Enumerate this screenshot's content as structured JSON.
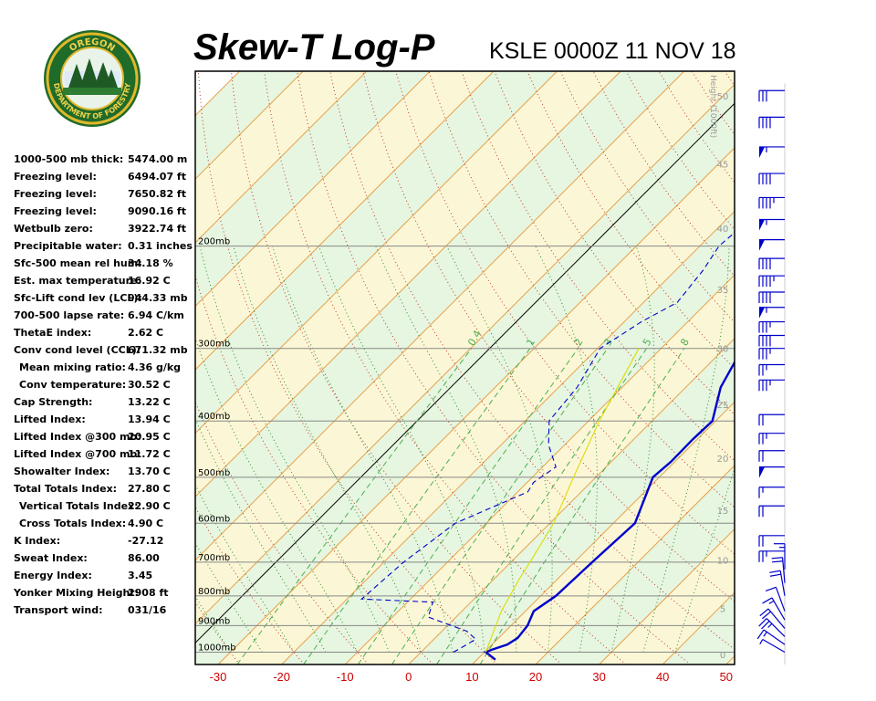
{
  "header": {
    "title": "Skew-T Log-P",
    "station_time": "KSLE 0000Z 11 NOV 18"
  },
  "logo": {
    "top_text": "OREGON",
    "bottom_text": "DEPARTMENT OF FORESTRY"
  },
  "indices": [
    {
      "label": "1000-500 mb thick:",
      "value": "5474.00 m",
      "indent": false
    },
    {
      "label": "Freezing level:",
      "value": "6494.07 ft",
      "indent": false
    },
    {
      "label": "Freezing level:",
      "value": "7650.82 ft",
      "indent": false
    },
    {
      "label": "Freezing level:",
      "value": "9090.16 ft",
      "indent": false
    },
    {
      "label": "Wetbulb zero:",
      "value": "3922.74 ft",
      "indent": false
    },
    {
      "label": "Precipitable water:",
      "value": "0.31 inches",
      "indent": false
    },
    {
      "label": "Sfc-500 mean rel hum:",
      "value": "34.18 %",
      "indent": false
    },
    {
      "label": "Est. max temperature:",
      "value": "16.92 C",
      "indent": false
    },
    {
      "label": "Sfc-Lift cond lev (LCL):",
      "value": "944.33 mb",
      "indent": false
    },
    {
      "label": "700-500 lapse rate:",
      "value": "6.94 C/km",
      "indent": false
    },
    {
      "label": "ThetaE index:",
      "value": "2.62 C",
      "indent": false
    },
    {
      "label": "Conv cond level (CCL):",
      "value": "671.32 mb",
      "indent": false
    },
    {
      "label": "Mean mixing ratio:",
      "value": "4.36 g/kg",
      "indent": true
    },
    {
      "label": "Conv temperature:",
      "value": "30.52 C",
      "indent": true
    },
    {
      "label": "Cap Strength:",
      "value": "13.22 C",
      "indent": false
    },
    {
      "label": "Lifted Index:",
      "value": "13.94 C",
      "indent": false
    },
    {
      "label": "Lifted Index @300 mb:",
      "value": "20.95 C",
      "indent": false
    },
    {
      "label": "Lifted Index @700 mb:",
      "value": "11.72 C",
      "indent": false
    },
    {
      "label": "Showalter Index:",
      "value": "13.70 C",
      "indent": false
    },
    {
      "label": "Total Totals Index:",
      "value": "27.80 C",
      "indent": false
    },
    {
      "label": "Vertical Totals Index:",
      "value": "22.90 C",
      "indent": true
    },
    {
      "label": "Cross Totals Index:",
      "value": "4.90 C",
      "indent": true
    },
    {
      "label": "K Index:",
      "value": "-27.12",
      "indent": false
    },
    {
      "label": "Sweat Index:",
      "value": "86.00",
      "indent": false
    },
    {
      "label": "Energy Index:",
      "value": "3.45",
      "indent": false
    },
    {
      "label": "Yonker Mixing Height:",
      "value": "2908 ft",
      "indent": false
    },
    {
      "label": "Transport wind:",
      "value": "031/16",
      "indent": false
    }
  ],
  "chart_data": {
    "type": "line",
    "subtype": "skew-t log-p",
    "x_ticks": [
      -30,
      -20,
      -10,
      0,
      10,
      20,
      30,
      40,
      50
    ],
    "x_tick_color": "#cc0000",
    "xlim": [
      -30,
      50
    ],
    "pressure_levels": [
      {
        "p": 200,
        "label": "200mb"
      },
      {
        "p": 300,
        "label": "300mb"
      },
      {
        "p": 400,
        "label": "400mb"
      },
      {
        "p": 500,
        "label": "500mb"
      },
      {
        "p": 600,
        "label": "600mb"
      },
      {
        "p": 700,
        "label": "700mb"
      },
      {
        "p": 800,
        "label": "800mb"
      },
      {
        "p": 900,
        "label": "900mb"
      },
      {
        "p": 1000,
        "label": "1000mb"
      }
    ],
    "plim": [
      1050,
      100
    ],
    "height_axis": {
      "label": "Height (1000ft)",
      "ticks": [
        0,
        5,
        10,
        15,
        20,
        25,
        30,
        35,
        40,
        45,
        50
      ]
    },
    "mixing_ratio_labels": [
      "0.4",
      "1",
      "2",
      "3",
      "5",
      "8"
    ],
    "series": [
      {
        "role": "temperature",
        "color": "#0000cc",
        "style": "solid",
        "points": [
          [
            1030,
            12.9
          ],
          [
            1000,
            10.2
          ],
          [
            990,
            10.8
          ],
          [
            970,
            12.4
          ],
          [
            945,
            13.0
          ],
          [
            900,
            12.6
          ],
          [
            850,
            11.3
          ],
          [
            800,
            12.4
          ],
          [
            700,
            12.8
          ],
          [
            600,
            13.4
          ],
          [
            550,
            11.3
          ],
          [
            500,
            9.0
          ],
          [
            470,
            9.4
          ],
          [
            430,
            9.3
          ],
          [
            400,
            9.5
          ],
          [
            350,
            5.5
          ],
          [
            300,
            2.8
          ],
          [
            280,
            1.4
          ],
          [
            250,
            -2.6
          ],
          [
            225,
            -5.0
          ],
          [
            210,
            -5.4
          ],
          [
            200,
            -4.8
          ],
          [
            185,
            -4.6
          ],
          [
            180,
            -3.7
          ],
          [
            170,
            0.6
          ],
          [
            165,
            2.4
          ],
          [
            160,
            3.8
          ]
        ]
      },
      {
        "role": "dewpoint",
        "color": "#0000cc",
        "style": "dashed",
        "points": [
          [
            1000,
            5.1
          ],
          [
            985,
            5.6
          ],
          [
            950,
            6.6
          ],
          [
            920,
            3.9
          ],
          [
            870,
            -4.4
          ],
          [
            820,
            -6.0
          ],
          [
            810,
            -17.7
          ],
          [
            700,
            -16.9
          ],
          [
            600,
            -14.9
          ],
          [
            530,
            -8.4
          ],
          [
            510,
            -9.0
          ],
          [
            480,
            -7.9
          ],
          [
            440,
            -12.5
          ],
          [
            400,
            -16.2
          ],
          [
            350,
            -17.1
          ],
          [
            300,
            -19.6
          ],
          [
            270,
            -17.3
          ],
          [
            250,
            -14.7
          ],
          [
            220,
            -15.7
          ],
          [
            200,
            -17.0
          ],
          [
            185,
            -16.5
          ],
          [
            180,
            -13.6
          ],
          [
            170,
            -13.3
          ],
          [
            165,
            -16.9
          ]
        ]
      },
      {
        "role": "parcel",
        "color": "#dddd00",
        "style": "solid",
        "points": [
          [
            1000,
            10.2
          ],
          [
            945,
            8.8
          ],
          [
            850,
            6.2
          ],
          [
            750,
            4.0
          ],
          [
            700,
            3.0
          ],
          [
            600,
            0.6
          ],
          [
            500,
            -3.5
          ],
          [
            400,
            -8.3
          ],
          [
            300,
            -13.5
          ]
        ]
      }
    ],
    "wind_barbs": [
      {
        "p": 1000,
        "dir": 300,
        "kt": 5
      },
      {
        "p": 970,
        "dir": 305,
        "kt": 15
      },
      {
        "p": 940,
        "dir": 315,
        "kt": 25
      },
      {
        "p": 910,
        "dir": 320,
        "kt": 20
      },
      {
        "p": 880,
        "dir": 330,
        "kt": 15
      },
      {
        "p": 850,
        "dir": 340,
        "kt": 10
      },
      {
        "p": 800,
        "dir": 350,
        "kt": 20
      },
      {
        "p": 760,
        "dir": 355,
        "kt": 20
      },
      {
        "p": 720,
        "dir": 360,
        "kt": 15
      },
      {
        "p": 670,
        "dir": 270,
        "kt": 25
      },
      {
        "p": 630,
        "dir": 270,
        "kt": 20
      },
      {
        "p": 560,
        "dir": 270,
        "kt": 20
      },
      {
        "p": 520,
        "dir": 270,
        "kt": 15
      },
      {
        "p": 480,
        "dir": 270,
        "kt": 50
      },
      {
        "p": 450,
        "dir": 270,
        "kt": 20
      },
      {
        "p": 420,
        "dir": 270,
        "kt": 25
      },
      {
        "p": 390,
        "dir": 270,
        "kt": 20
      },
      {
        "p": 340,
        "dir": 270,
        "kt": 35
      },
      {
        "p": 320,
        "dir": 270,
        "kt": 25
      },
      {
        "p": 300,
        "dir": 270,
        "kt": 35
      },
      {
        "p": 285,
        "dir": 270,
        "kt": 40
      },
      {
        "p": 270,
        "dir": 270,
        "kt": 35
      },
      {
        "p": 255,
        "dir": 270,
        "kt": 55
      },
      {
        "p": 240,
        "dir": 270,
        "kt": 40
      },
      {
        "p": 225,
        "dir": 270,
        "kt": 45
      },
      {
        "p": 210,
        "dir": 270,
        "kt": 40
      },
      {
        "p": 195,
        "dir": 270,
        "kt": 50
      },
      {
        "p": 180,
        "dir": 270,
        "kt": 55
      },
      {
        "p": 165,
        "dir": 270,
        "kt": 45
      },
      {
        "p": 150,
        "dir": 270,
        "kt": 40
      },
      {
        "p": 135,
        "dir": 270,
        "kt": 55
      },
      {
        "p": 120,
        "dir": 270,
        "kt": 40
      },
      {
        "p": 108,
        "dir": 270,
        "kt": 30
      }
    ]
  }
}
